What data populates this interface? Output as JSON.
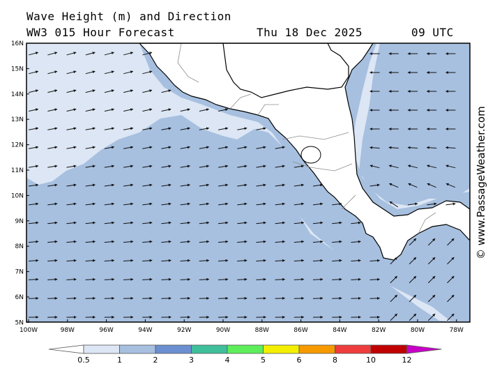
{
  "header": {
    "title": "Wave Height (m) and Direction",
    "model": "WW3 015 Hour Forecast",
    "date": "Thu 18 Dec 2025",
    "time": "09 UTC"
  },
  "watermark": "© www.PassageWeather.com",
  "map": {
    "lat_labels": [
      "16N",
      "15N",
      "14N",
      "13N",
      "12N",
      "11N",
      "10N",
      "9N",
      "8N",
      "7N",
      "6N",
      "5N"
    ],
    "lon_labels": [
      "100W",
      "98W",
      "96W",
      "94W",
      "92W",
      "90W",
      "88W",
      "86W",
      "84W",
      "82W",
      "80W",
      "78W"
    ],
    "lat_range": [
      5,
      16
    ],
    "lon_range": [
      -100,
      -77.5
    ]
  },
  "legend": {
    "labels": [
      "0.5",
      "1",
      "2",
      "3",
      "4",
      "5",
      "6",
      "8",
      "10",
      "12"
    ],
    "colors": [
      "#dce6f4",
      "#a7c0e0",
      "#6b8fd0",
      "#3fbf9c",
      "#5eee5a",
      "#f4ef00",
      "#f79a00",
      "#ef3c3c",
      "#c10000",
      "#c800c8"
    ]
  },
  "colors": {
    "sea_high": "#a7c0e0",
    "sea_low": "#dce6f4",
    "land": "#ffffff"
  }
}
